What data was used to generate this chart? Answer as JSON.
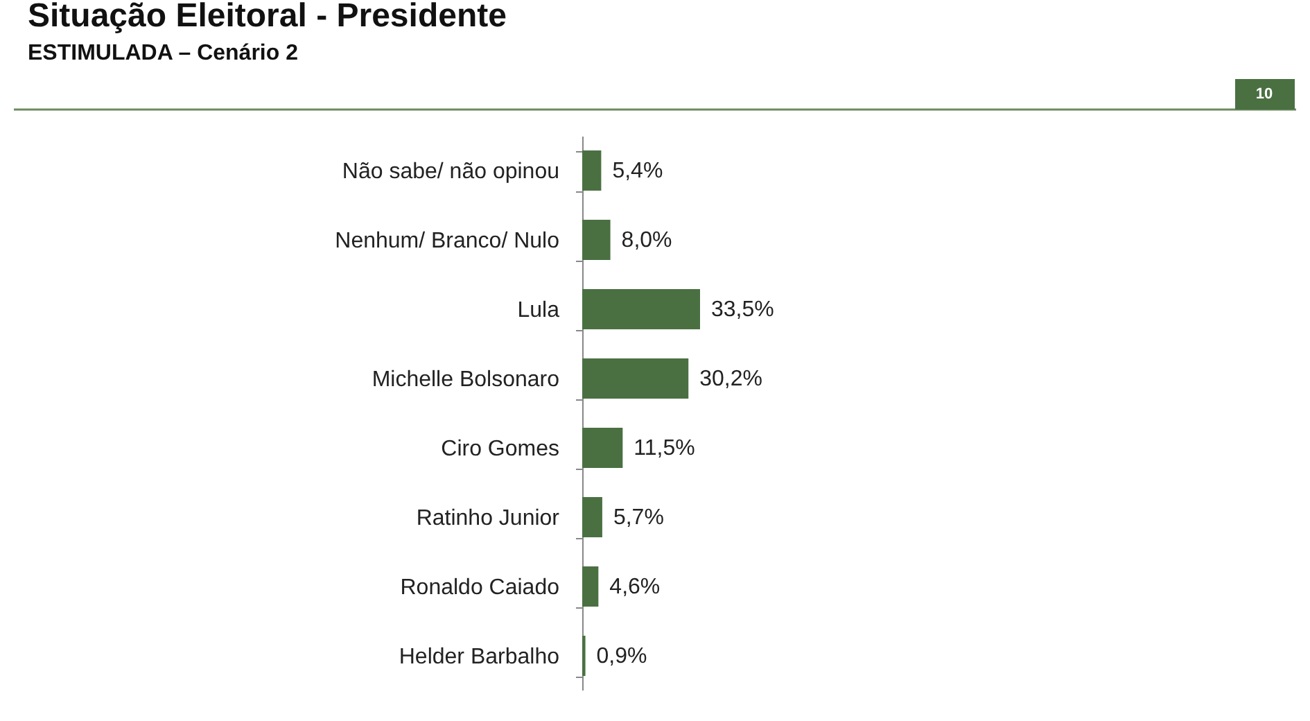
{
  "chart_data": {
    "type": "bar",
    "orientation": "horizontal",
    "title": "Situação Eleitoral - Presidente",
    "subtitle": "ESTIMULADA – Cenário 2",
    "annotations": [
      "10"
    ],
    "categories": [
      "Não sabe/ não opinou",
      "Nenhum/ Branco/ Nulo",
      "Lula",
      "Michelle Bolsonaro",
      "Ciro Gomes",
      "Ratinho Junior",
      "Ronaldo Caiado",
      "Helder Barbalho"
    ],
    "values": [
      5.4,
      8.0,
      33.5,
      30.2,
      11.5,
      5.7,
      4.6,
      0.9
    ],
    "value_labels": [
      "5,4%",
      "8,0%",
      "33,5%",
      "30,2%",
      "11,5%",
      "5,7%",
      "4,6%",
      "0,9%"
    ],
    "color": "#4a7042"
  }
}
